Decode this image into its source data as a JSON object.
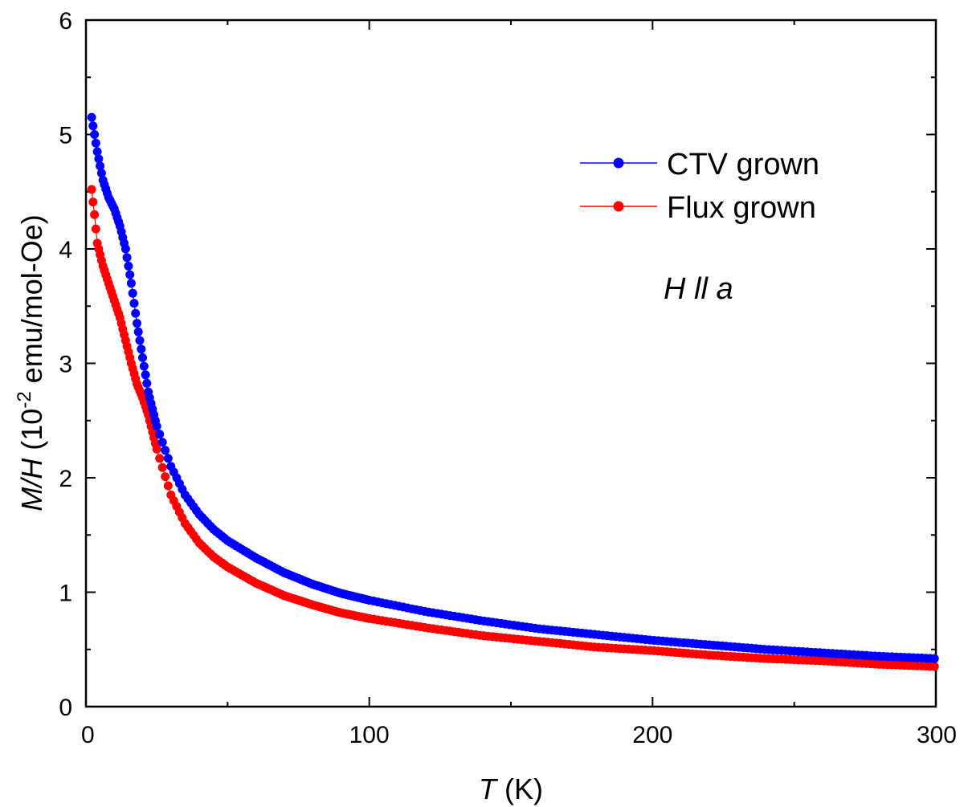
{
  "chart_data": {
    "type": "scatter",
    "title": "",
    "xlabel": {
      "italic": "T",
      "rest": " (K)"
    },
    "ylabel": {
      "italic": "M/H",
      "rest_base": " (10",
      "rest_sup": "-2",
      "rest_tail": " emu/mol-Oe)"
    },
    "xlim": [
      0,
      300
    ],
    "ylim": [
      0,
      6
    ],
    "x_ticks": [
      0,
      100,
      200,
      300
    ],
    "x_tick_labels": [
      "0",
      "100",
      "200",
      "300"
    ],
    "y_ticks": [
      0,
      1,
      2,
      3,
      4,
      5,
      6
    ],
    "y_tick_labels": [
      "0",
      "1",
      "2",
      "3",
      "4",
      "5",
      "6"
    ],
    "annotation": "H ll a",
    "legend_position": "top-right",
    "series": [
      {
        "name": "CTV grown",
        "color": "#0000ff",
        "x": [
          2,
          3,
          4,
          6,
          8,
          10,
          12,
          14,
          16,
          18,
          20,
          22,
          25,
          30,
          35,
          40,
          45,
          50,
          60,
          70,
          80,
          90,
          100,
          120,
          140,
          160,
          180,
          200,
          220,
          240,
          260,
          280,
          300
        ],
        "y": [
          5.15,
          5.0,
          4.85,
          4.6,
          4.45,
          4.35,
          4.2,
          4.0,
          3.7,
          3.35,
          3.05,
          2.75,
          2.45,
          2.1,
          1.85,
          1.68,
          1.55,
          1.45,
          1.3,
          1.17,
          1.07,
          0.99,
          0.93,
          0.83,
          0.75,
          0.68,
          0.63,
          0.58,
          0.54,
          0.5,
          0.47,
          0.44,
          0.42
        ]
      },
      {
        "name": "Flux grown",
        "color": "#ff0000",
        "x": [
          2,
          3,
          4,
          6,
          8,
          10,
          12,
          14,
          16,
          18,
          20,
          22,
          25,
          30,
          35,
          40,
          45,
          50,
          60,
          70,
          80,
          90,
          100,
          120,
          140,
          160,
          180,
          200,
          220,
          240,
          260,
          280,
          300
        ],
        "y": [
          4.52,
          4.3,
          4.05,
          3.85,
          3.7,
          3.55,
          3.4,
          3.2,
          3.0,
          2.82,
          2.7,
          2.55,
          2.25,
          1.85,
          1.6,
          1.43,
          1.31,
          1.22,
          1.08,
          0.97,
          0.89,
          0.82,
          0.77,
          0.69,
          0.62,
          0.57,
          0.52,
          0.49,
          0.45,
          0.42,
          0.4,
          0.37,
          0.35
        ]
      }
    ]
  }
}
